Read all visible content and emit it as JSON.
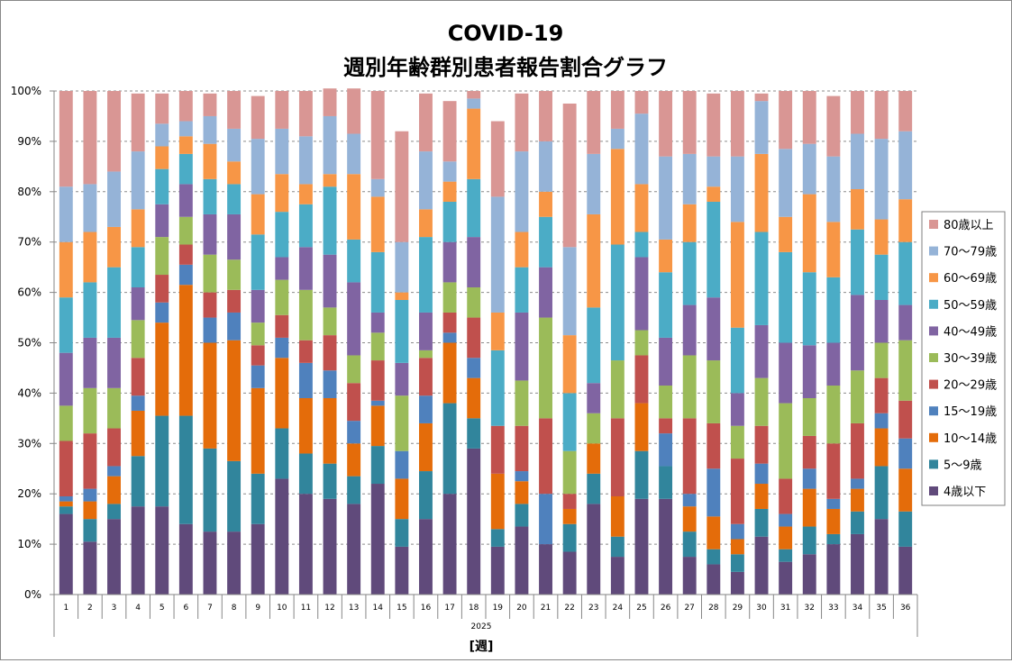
{
  "chart_data": {
    "type": "bar",
    "stacked": true,
    "title_lines": [
      "COVID-19",
      "週別年齢群別患者報告割合グラフ"
    ],
    "xlabel": "[週]",
    "year_label": "2025",
    "ylim": [
      0,
      100
    ],
    "y_ticks": [
      "0%",
      "10%",
      "20%",
      "30%",
      "40%",
      "50%",
      "60%",
      "70%",
      "80%",
      "90%",
      "100%"
    ],
    "categories": [
      "1",
      "2",
      "3",
      "4",
      "5",
      "6",
      "7",
      "8",
      "9",
      "10",
      "11",
      "12",
      "13",
      "14",
      "15",
      "16",
      "17",
      "18",
      "19",
      "20",
      "21",
      "22",
      "23",
      "24",
      "25",
      "26",
      "27",
      "28",
      "29",
      "30",
      "31",
      "32",
      "33",
      "34",
      "35",
      "36"
    ],
    "grid": true,
    "legend_position": "right",
    "series": [
      {
        "name": "4歳以下",
        "color": "#604a7b",
        "values": [
          16,
          10.5,
          15,
          17.5,
          17.5,
          14,
          12.5,
          12.5,
          14,
          23,
          20,
          19,
          18,
          22,
          9.5,
          15,
          20,
          29,
          9.5,
          13.5,
          10,
          8.5,
          18,
          7.5,
          19,
          19,
          7.5,
          6,
          4.5,
          11.5,
          6.5,
          8,
          10,
          12,
          15,
          9.5
        ]
      },
      {
        "name": "5〜9歳",
        "color": "#31859c",
        "values": [
          1.5,
          4.5,
          3,
          10,
          18,
          21.5,
          16.5,
          14,
          10,
          10,
          8,
          7,
          5.5,
          7.5,
          5.5,
          9.5,
          18,
          6,
          3.5,
          4.5,
          0,
          5.5,
          6,
          4,
          9.5,
          6.5,
          5,
          3,
          3.5,
          5.5,
          2.5,
          5.5,
          2,
          4.5,
          10.5,
          7
        ]
      },
      {
        "name": "10〜14歳",
        "color": "#e46c0a",
        "values": [
          1,
          3.5,
          5.5,
          9,
          18.5,
          26,
          21,
          24,
          17,
          14,
          11,
          13,
          6.5,
          8,
          8,
          9.5,
          12,
          8,
          11,
          4.5,
          0,
          3,
          6,
          8,
          9.5,
          0,
          5,
          6.5,
          3,
          5,
          4.5,
          7.5,
          5,
          4.5,
          7.5,
          8.5
        ]
      },
      {
        "name": "15〜19歳",
        "color": "#4f81bd",
        "values": [
          1,
          2.5,
          2,
          3,
          4,
          4,
          5,
          5.5,
          4.5,
          4,
          7,
          5.5,
          4.5,
          1,
          5.5,
          5.5,
          2,
          4,
          0,
          2,
          10,
          0,
          0,
          0,
          0,
          6.5,
          2.5,
          9.5,
          3,
          4,
          2.5,
          4,
          2,
          2,
          3,
          6
        ]
      },
      {
        "name": "20〜29歳",
        "color": "#c0504d",
        "values": [
          11,
          11,
          7.5,
          7.5,
          5.5,
          4,
          5,
          4.5,
          4,
          4.5,
          4.5,
          7,
          7.5,
          8,
          0,
          7.5,
          4,
          8,
          9.5,
          9,
          15,
          3,
          0,
          15.5,
          9.5,
          3,
          15,
          9,
          13,
          7.5,
          7,
          6.5,
          11,
          11,
          7,
          7.5
        ]
      },
      {
        "name": "30〜39歳",
        "color": "#9bbb59",
        "values": [
          7,
          9,
          8,
          7.5,
          7.5,
          5.5,
          7.5,
          6,
          4.5,
          7,
          10,
          5.5,
          5.5,
          5.5,
          11,
          1.5,
          6,
          6,
          0,
          9,
          20,
          8.5,
          6,
          11.5,
          5,
          6.5,
          12.5,
          12.5,
          6.5,
          9.5,
          15,
          7.5,
          11.5,
          10.5,
          7,
          12
        ]
      },
      {
        "name": "40〜49歳",
        "color": "#8064a2",
        "values": [
          10.5,
          10,
          10,
          6.5,
          6.5,
          6.5,
          8,
          9,
          6.5,
          4.5,
          8.5,
          10.5,
          14.5,
          4,
          6.5,
          7.5,
          8,
          10,
          0,
          13.5,
          10,
          0,
          6,
          0,
          14.5,
          9.5,
          10,
          12.5,
          6.5,
          10.5,
          12,
          10.5,
          8.5,
          15,
          8.5,
          7
        ]
      },
      {
        "name": "50〜59歳",
        "color": "#4bacc6",
        "values": [
          11,
          11,
          14,
          8,
          7,
          6,
          7,
          6,
          11,
          9,
          8.5,
          13.5,
          8.5,
          12,
          12.5,
          15,
          8,
          11.5,
          15,
          9,
          10,
          11.5,
          15,
          23,
          5,
          13,
          12.5,
          19,
          13,
          18.5,
          18,
          14.5,
          13,
          13,
          9,
          12.5
        ]
      },
      {
        "name": "60〜69歳",
        "color": "#f79646",
        "values": [
          11,
          10,
          8,
          7.5,
          4.5,
          3.5,
          7,
          4.5,
          8,
          7.5,
          4,
          2.5,
          13,
          11,
          1.5,
          5.5,
          4,
          14,
          7.5,
          7,
          5,
          11.5,
          18.5,
          19,
          9.5,
          6.5,
          7.5,
          3,
          21,
          15.5,
          7,
          15.5,
          11,
          8,
          7,
          8.5
        ]
      },
      {
        "name": "70〜79歳",
        "color": "#95b3d7",
        "values": [
          11,
          9.5,
          11,
          11.5,
          4.5,
          3,
          5.5,
          6.5,
          11,
          9,
          9.5,
          11.5,
          8,
          3.5,
          10,
          11.5,
          4,
          2,
          23,
          16,
          10,
          17.5,
          12,
          4,
          14,
          16.5,
          10,
          6,
          13,
          10.5,
          13.5,
          10,
          13,
          11,
          16,
          13.5
        ]
      },
      {
        "name": "80歳以上",
        "color": "#d99694",
        "values": [
          19,
          18.5,
          16,
          11.5,
          6,
          6,
          4.5,
          7.5,
          8.5,
          7.5,
          9,
          5.5,
          9,
          17.5,
          22,
          11.5,
          12,
          1.5,
          15,
          11.5,
          10,
          28.5,
          12.5,
          7.5,
          4.5,
          13,
          12.5,
          12.5,
          13,
          1.5,
          11.5,
          10.5,
          12,
          8.5,
          9.5,
          8
        ]
      }
    ]
  }
}
